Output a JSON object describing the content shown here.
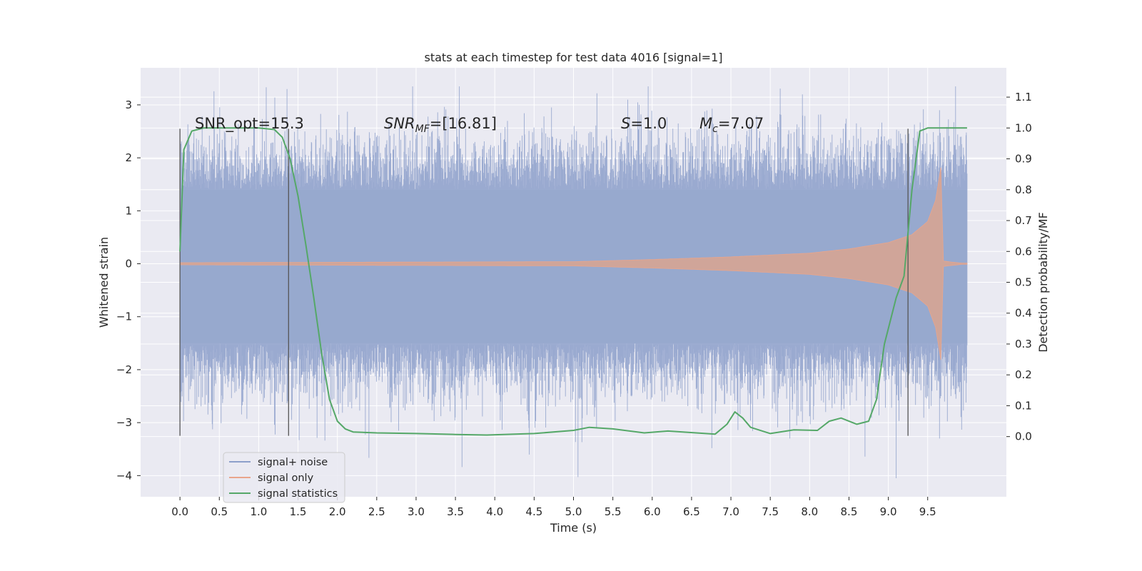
{
  "chart_data": {
    "type": "line",
    "title": "stats at each timestep for test data 4016 [signal=1]",
    "xlabel": "Time (s)",
    "ylabel": "Whitened strain",
    "ylabel_right": "Detection probability/MF",
    "xlim": [
      -0.5,
      10.5
    ],
    "ylim": [
      -4.4,
      3.7
    ],
    "ylim_right": [
      -0.195,
      1.195
    ],
    "x_ticks": [
      "0.0",
      "0.5",
      "1.0",
      "1.5",
      "2.0",
      "2.5",
      "3.0",
      "3.5",
      "4.0",
      "4.5",
      "5.0",
      "5.5",
      "6.0",
      "6.5",
      "7.0",
      "7.5",
      "8.0",
      "8.5",
      "9.0",
      "9.5"
    ],
    "y_ticks": [
      "3",
      "2",
      "1",
      "0",
      "−1",
      "−2",
      "−3",
      "−4"
    ],
    "y_ticks_right": [
      "1.1",
      "1.0",
      "0.9",
      "0.8",
      "0.7",
      "0.6",
      "0.5",
      "0.4",
      "0.3",
      "0.2",
      "0.1",
      "0.0"
    ],
    "grid": true,
    "legend_position": "bottom-left",
    "legend": [
      "signal+ noise",
      "signal only",
      "signal statistics"
    ],
    "annotations": {
      "snr_opt": "SNR_opt=15.3",
      "snr_mf_main": "SNR",
      "snr_mf_sub": "MF",
      "snr_mf_rest": "=[16.81]",
      "s_main": "S",
      "s_rest": "=1.0",
      "mc_main": "M",
      "mc_sub": "c",
      "mc_rest": "=7.07"
    },
    "vlines_x": [
      0.0,
      1.38,
      9.25
    ],
    "vline_range": [
      -3.25,
      2.55
    ],
    "noise": {
      "name": "signal+ noise",
      "x_range": [
        0.0,
        10.0
      ],
      "typical_envelope": [
        -1.5,
        1.4
      ],
      "peak_max": 3.35,
      "peak_min": -4.05
    },
    "signal_only": {
      "name": "signal only",
      "x_range": [
        0.0,
        10.0
      ],
      "amplitude": [
        [
          0.0,
          0.02
        ],
        [
          5.0,
          0.04
        ],
        [
          6.0,
          0.08
        ],
        [
          7.0,
          0.13
        ],
        [
          8.0,
          0.2
        ],
        [
          8.5,
          0.28
        ],
        [
          9.0,
          0.4
        ],
        [
          9.3,
          0.55
        ],
        [
          9.5,
          0.8
        ],
        [
          9.6,
          1.2
        ],
        [
          9.65,
          1.65
        ],
        [
          9.68,
          1.95
        ],
        [
          9.7,
          0.05
        ],
        [
          10.0,
          0.0
        ]
      ]
    },
    "statistics": {
      "name": "signal statistics",
      "points": [
        [
          0.0,
          0.6
        ],
        [
          0.05,
          0.93
        ],
        [
          0.15,
          0.99
        ],
        [
          0.3,
          1.0
        ],
        [
          1.0,
          1.0
        ],
        [
          1.2,
          0.995
        ],
        [
          1.3,
          0.97
        ],
        [
          1.4,
          0.9
        ],
        [
          1.5,
          0.78
        ],
        [
          1.6,
          0.62
        ],
        [
          1.7,
          0.45
        ],
        [
          1.8,
          0.27
        ],
        [
          1.9,
          0.12
        ],
        [
          2.0,
          0.05
        ],
        [
          2.1,
          0.025
        ],
        [
          2.2,
          0.015
        ],
        [
          2.5,
          0.012
        ],
        [
          3.0,
          0.01
        ],
        [
          3.5,
          0.007
        ],
        [
          3.9,
          0.005
        ],
        [
          4.5,
          0.01
        ],
        [
          5.0,
          0.02
        ],
        [
          5.2,
          0.03
        ],
        [
          5.5,
          0.025
        ],
        [
          5.9,
          0.012
        ],
        [
          6.2,
          0.018
        ],
        [
          6.8,
          0.008
        ],
        [
          6.95,
          0.04
        ],
        [
          7.05,
          0.08
        ],
        [
          7.15,
          0.06
        ],
        [
          7.25,
          0.03
        ],
        [
          7.5,
          0.01
        ],
        [
          7.8,
          0.022
        ],
        [
          8.1,
          0.02
        ],
        [
          8.25,
          0.05
        ],
        [
          8.4,
          0.06
        ],
        [
          8.6,
          0.04
        ],
        [
          8.75,
          0.05
        ],
        [
          8.85,
          0.12
        ],
        [
          8.95,
          0.3
        ],
        [
          9.1,
          0.45
        ],
        [
          9.2,
          0.52
        ],
        [
          9.3,
          0.8
        ],
        [
          9.4,
          0.99
        ],
        [
          9.5,
          1.0
        ],
        [
          10.0,
          1.0
        ]
      ]
    }
  }
}
